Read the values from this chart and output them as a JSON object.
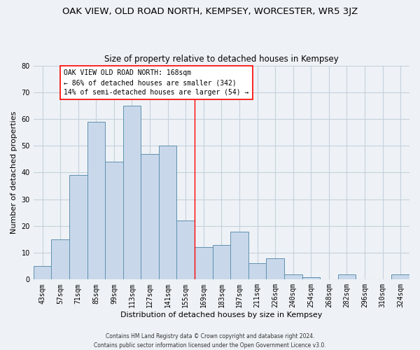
{
  "title": "OAK VIEW, OLD ROAD NORTH, KEMPSEY, WORCESTER, WR5 3JZ",
  "subtitle": "Size of property relative to detached houses in Kempsey",
  "xlabel": "Distribution of detached houses by size in Kempsey",
  "ylabel": "Number of detached properties",
  "categories": [
    "43sqm",
    "57sqm",
    "71sqm",
    "85sqm",
    "99sqm",
    "113sqm",
    "127sqm",
    "141sqm",
    "155sqm",
    "169sqm",
    "183sqm",
    "197sqm",
    "211sqm",
    "226sqm",
    "240sqm",
    "254sqm",
    "268sqm",
    "282sqm",
    "296sqm",
    "310sqm",
    "324sqm"
  ],
  "values": [
    5,
    15,
    39,
    59,
    44,
    65,
    47,
    50,
    22,
    12,
    13,
    18,
    6,
    8,
    2,
    1,
    0,
    2,
    0,
    0,
    2
  ],
  "bar_color": "#c8d8ea",
  "bar_edge_color": "#6090b0",
  "grid_color": "#c5d0dc",
  "annotation_text_line1": "OAK VIEW OLD ROAD NORTH: 168sqm",
  "annotation_text_line2": "← 86% of detached houses are smaller (342)",
  "annotation_text_line3": "14% of semi-detached houses are larger (54) →",
  "footer_line1": "Contains HM Land Registry data © Crown copyright and database right 2024.",
  "footer_line2": "Contains public sector information licensed under the Open Government Licence v3.0.",
  "ylim": [
    0,
    80
  ],
  "yticks": [
    0,
    10,
    20,
    30,
    40,
    50,
    60,
    70,
    80
  ],
  "background_color": "#eef2f6",
  "title_fontsize": 9.5,
  "subtitle_fontsize": 8.5,
  "xlabel_fontsize": 8,
  "ylabel_fontsize": 8,
  "tick_fontsize": 7,
  "annotation_fontsize": 7,
  "footer_fontsize": 5.5,
  "vline_x": 8.5
}
